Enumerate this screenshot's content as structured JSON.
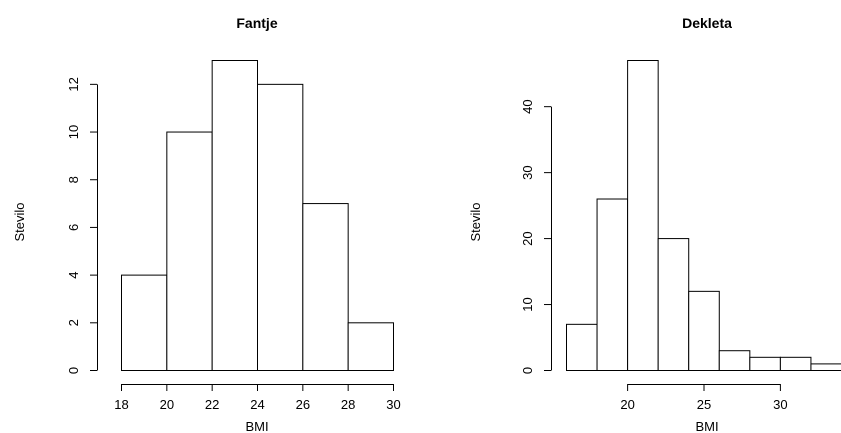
{
  "chart_data": [
    {
      "type": "bar",
      "subtype": "histogram",
      "title": "Fantje",
      "xlabel": "BMI",
      "ylabel": "Stevilo",
      "bins": [
        [
          18,
          20
        ],
        [
          20,
          22
        ],
        [
          22,
          24
        ],
        [
          24,
          26
        ],
        [
          26,
          28
        ],
        [
          28,
          30
        ]
      ],
      "values": [
        4,
        10,
        13,
        12,
        7,
        2
      ],
      "xlim": [
        18,
        30
      ],
      "ylim": [
        0,
        13
      ],
      "xticks": [
        18,
        20,
        22,
        24,
        26,
        28,
        30
      ],
      "yticks": [
        0,
        2,
        4,
        6,
        8,
        10,
        12
      ],
      "grid": false
    },
    {
      "type": "bar",
      "subtype": "histogram",
      "title": "Dekleta",
      "xlabel": "BMI",
      "ylabel": "Stevilo",
      "bins": [
        [
          16,
          18
        ],
        [
          18,
          20
        ],
        [
          20,
          22
        ],
        [
          22,
          24
        ],
        [
          24,
          26
        ],
        [
          26,
          28
        ],
        [
          28,
          30
        ],
        [
          30,
          32
        ],
        [
          32,
          34
        ]
      ],
      "values": [
        7,
        26,
        47,
        20,
        12,
        3,
        2,
        2,
        1
      ],
      "xlim": [
        16,
        34
      ],
      "ylim": [
        0,
        47
      ],
      "xticks": [
        20,
        25,
        30
      ],
      "yticks": [
        0,
        10,
        20,
        30,
        40
      ],
      "grid": false
    }
  ]
}
